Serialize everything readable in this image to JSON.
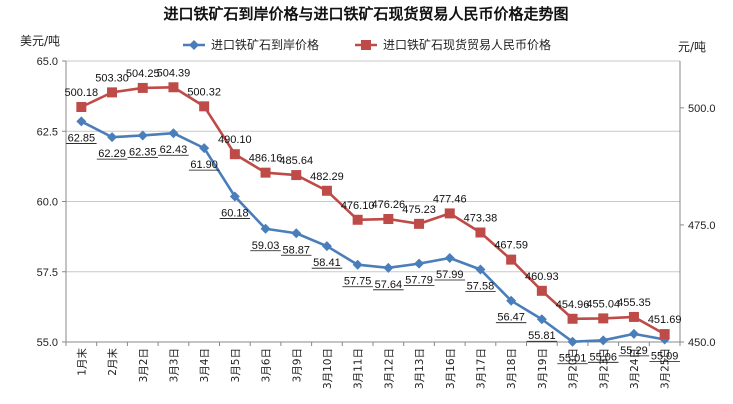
{
  "chart_data": {
    "type": "line",
    "title": "进口铁矿石到岸价格与进口铁矿石现货贸易人民币价格走势图",
    "ylabel_left": "美元/吨",
    "ylabel_right": "元/吨",
    "categories": [
      "1月末",
      "2月末",
      "3月2日",
      "3月3日",
      "3月4日",
      "3月5日",
      "3月6日",
      "3月9日",
      "3月10日",
      "3月11日",
      "3月12日",
      "3月13日",
      "3月16日",
      "3月17日",
      "3月18日",
      "3月19日",
      "3月20日",
      "3月23日",
      "3月24日",
      "3月25日"
    ],
    "yticks_left": [
      "55.0",
      "57.5",
      "60.0",
      "62.5",
      "65.0"
    ],
    "yticks_right": [
      "450.0",
      "475.0",
      "500.0"
    ],
    "ylim_left": [
      55,
      65
    ],
    "ylim_right": [
      450,
      510
    ],
    "grid": true,
    "legend_position": "top",
    "series": [
      {
        "name": "进口铁矿石到岸价格",
        "axis": "left",
        "color": "#4a7ebb",
        "marker": "diamond",
        "values": [
          62.85,
          62.29,
          62.35,
          62.43,
          61.9,
          60.18,
          59.03,
          58.87,
          58.41,
          57.75,
          57.64,
          57.79,
          57.99,
          57.58,
          56.47,
          55.81,
          55.01,
          55.06,
          55.29,
          55.09
        ],
        "labels": [
          "62.85",
          "62.29",
          "62.35",
          "62.43",
          "61.90",
          "60.18",
          "59.03",
          "58.87",
          "58.41",
          "57.75",
          "57.64",
          "57.79",
          "57.99",
          "57.58",
          "56.47",
          "55.81",
          "55.01",
          "55.06",
          "55.29",
          "55.09"
        ]
      },
      {
        "name": "进口铁矿石现货贸易人民币价格",
        "axis": "right",
        "color": "#be4b48",
        "marker": "square",
        "values": [
          500.18,
          503.3,
          504.25,
          504.39,
          500.32,
          490.1,
          486.16,
          485.64,
          482.29,
          476.1,
          476.26,
          475.23,
          477.46,
          473.38,
          467.59,
          460.93,
          454.96,
          455.04,
          455.35,
          451.69
        ],
        "labels": [
          "500.18",
          "503.30",
          "504.25",
          "504.39",
          "500.32",
          "490.10",
          "486.16",
          "485.64",
          "482.29",
          "476.10",
          "476.26",
          "475.23",
          "477.46",
          "473.38",
          "467.59",
          "460.93",
          "454.96",
          "455.04",
          "455.35",
          "451.69"
        ]
      }
    ]
  }
}
